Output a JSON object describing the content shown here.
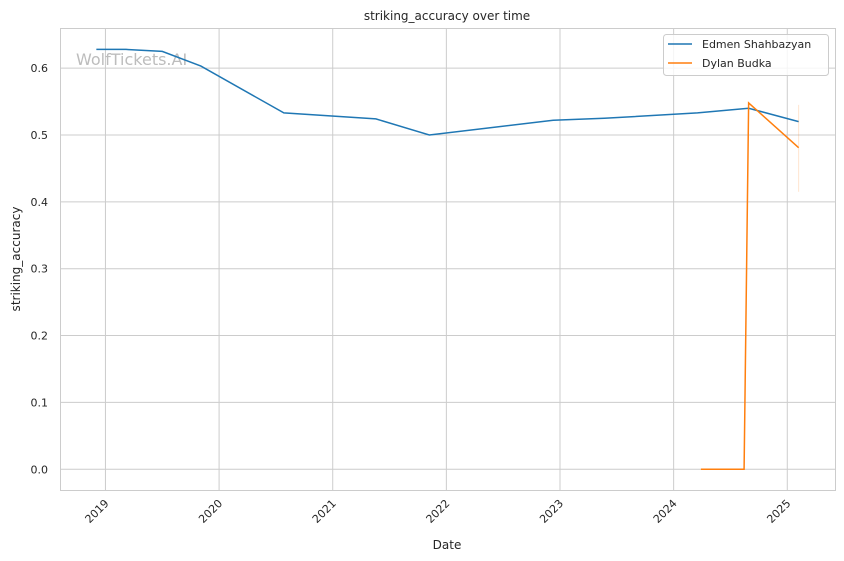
{
  "chart_data": {
    "type": "line",
    "title": "striking_accuracy over time",
    "xlabel": "Date",
    "ylabel": "striking_accuracy",
    "xlim": [
      2018.6,
      2025.42
    ],
    "ylim": [
      -0.031,
      0.66
    ],
    "xticks": [
      2019,
      2020,
      2021,
      2022,
      2023,
      2024,
      2025
    ],
    "xtick_labels": [
      "2019",
      "2020",
      "2021",
      "2022",
      "2023",
      "2024",
      "2025"
    ],
    "yticks": [
      0.0,
      0.1,
      0.2,
      0.3,
      0.4,
      0.5,
      0.6
    ],
    "ytick_labels": [
      "0.0",
      "0.1",
      "0.2",
      "0.3",
      "0.4",
      "0.5",
      "0.6"
    ],
    "grid": true,
    "legend_position": "top-right",
    "watermark": "WolfTickets.AI",
    "series": [
      {
        "name": "Edmen Shahbazyan",
        "color": "#1f77b4",
        "x": [
          2018.92,
          2019.18,
          2019.5,
          2019.84,
          2020.57,
          2021.38,
          2021.85,
          2022.94,
          2023.39,
          2024.21,
          2024.66,
          2025.1
        ],
        "y": [
          0.628,
          0.628,
          0.625,
          0.603,
          0.533,
          0.524,
          0.5,
          0.522,
          0.525,
          0.533,
          0.54,
          0.52
        ]
      },
      {
        "name": "Dylan Budka",
        "color": "#ff7f0e",
        "x": [
          2024.24,
          2024.62,
          2024.66,
          2025.1
        ],
        "y": [
          0.0,
          0.0,
          0.548,
          0.481
        ],
        "ci_at_last": [
          0.415,
          0.545
        ]
      }
    ]
  }
}
